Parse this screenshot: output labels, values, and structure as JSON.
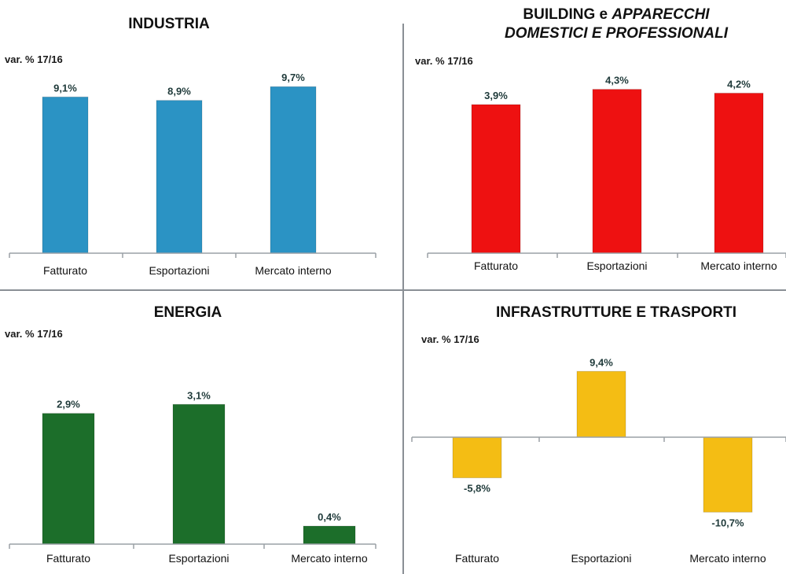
{
  "chart_data": [
    {
      "id": "industria",
      "type": "bar",
      "title": "INDUSTRIA",
      "subtitle": "var. % 17/16",
      "categories": [
        "Fatturato",
        "Esportazioni",
        "Mercato interno"
      ],
      "values": [
        9.1,
        8.9,
        9.7
      ],
      "value_labels": [
        "9,1%",
        "8,9%",
        "9,7%"
      ],
      "color": "#2b93c4",
      "ylim": [
        0,
        12
      ]
    },
    {
      "id": "building",
      "type": "bar",
      "title_line1": "BUILDING e",
      "title_line1_italic": "APPARECCHI",
      "title_line2": "DOMESTICI E PROFESSIONALI",
      "subtitle": "var. % 17/16",
      "categories": [
        "Fatturato",
        "Esportazioni",
        "Mercato interno"
      ],
      "values": [
        3.9,
        4.3,
        4.2
      ],
      "value_labels": [
        "3,9%",
        "4,3%",
        "4,2%"
      ],
      "color": "#ee1111",
      "ylim": [
        0,
        5.2
      ]
    },
    {
      "id": "energia",
      "type": "bar",
      "title": "ENERGIA",
      "subtitle": "var. % 17/16",
      "categories": [
        "Fatturato",
        "Esportazioni",
        "Mercato interno"
      ],
      "values": [
        2.9,
        3.1,
        0.4
      ],
      "value_labels": [
        "2,9%",
        "3,1%",
        "0,4%"
      ],
      "color": "#1c6e2a",
      "ylim": [
        0,
        4.5
      ]
    },
    {
      "id": "infrastrutture",
      "type": "bar",
      "title": "INFRASTRUTTURE E TRASPORTI",
      "subtitle": "var. % 17/16",
      "categories": [
        "Fatturato",
        "Esportazioni",
        "Mercato interno"
      ],
      "values": [
        -5.8,
        9.4,
        -10.7
      ],
      "value_labels": [
        "-5,8%",
        "9,4%",
        "-10,7%"
      ],
      "color": "#f4bd14",
      "ylim": [
        -12,
        11
      ]
    }
  ]
}
